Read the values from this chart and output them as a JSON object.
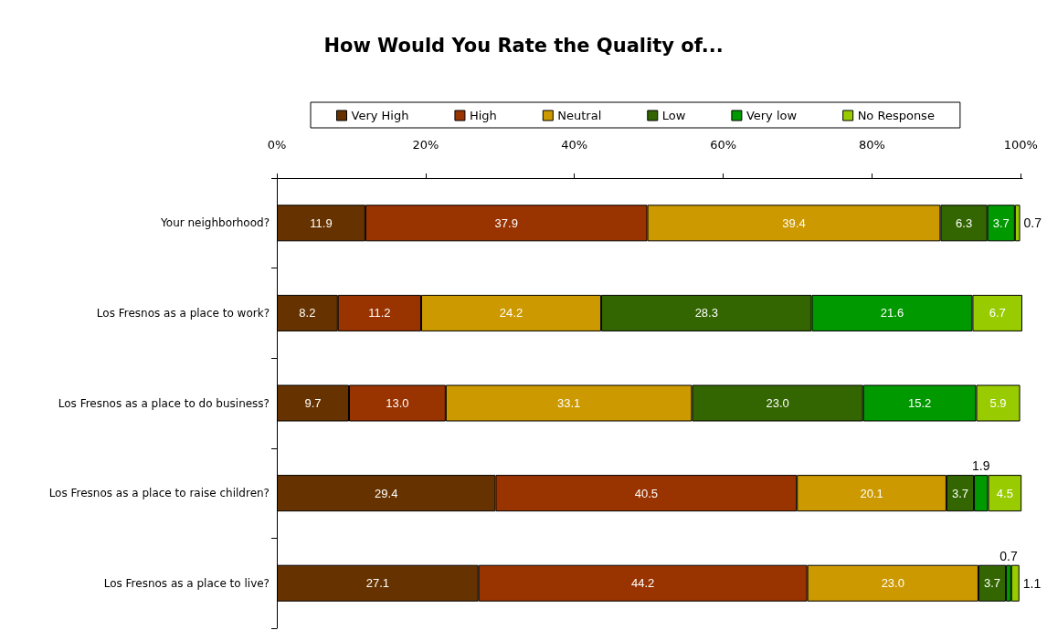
{
  "chart_data": {
    "type": "bar",
    "orientation": "horizontal",
    "stacked": true,
    "title": "How Would You Rate the Quality of...",
    "categories": [
      "Your neighborhood?",
      "Los Fresnos as a place to work?",
      "Los Fresnos as a place to do business?",
      "Los Fresnos as a place to raise children?",
      "Los Fresnos as a place to live?"
    ],
    "series": [
      {
        "name": "Very High",
        "color": "#663300",
        "values": [
          11.9,
          8.2,
          9.7,
          29.4,
          27.1
        ],
        "value_labels": [
          "11.9",
          "8.2",
          "9.7",
          "29.4",
          "27.1"
        ]
      },
      {
        "name": "High",
        "color": "#993300",
        "values": [
          37.9,
          11.2,
          13.0,
          40.5,
          44.2
        ],
        "value_labels": [
          "37.9",
          "11.2",
          "13.0",
          "40.5",
          "44.2"
        ]
      },
      {
        "name": "Neutral",
        "color": "#cc9900",
        "values": [
          39.4,
          24.2,
          33.1,
          20.1,
          23.0
        ],
        "value_labels": [
          "39.4",
          "24.2",
          "33.1",
          "20.1",
          "23.0"
        ]
      },
      {
        "name": "Low",
        "color": "#336600",
        "values": [
          6.3,
          28.3,
          23.0,
          3.7,
          3.7
        ],
        "value_labels": [
          "6.3",
          "28.3",
          "23.0",
          "3.7",
          "3.7"
        ]
      },
      {
        "name": "Very low",
        "color": "#009900",
        "values": [
          3.7,
          21.6,
          15.2,
          1.9,
          0.7
        ],
        "value_labels": [
          "3.7",
          "21.6",
          "15.2",
          "1.9",
          "0.7"
        ]
      },
      {
        "name": "No Response",
        "color": "#99cc00",
        "values": [
          0.7,
          6.7,
          5.9,
          4.5,
          1.1
        ],
        "value_labels": [
          "0.7",
          "6.7",
          "5.9",
          "4.5",
          "1.1"
        ]
      }
    ],
    "xlim": [
      0,
      100.2
    ],
    "xticks": [
      {
        "value": 0,
        "label": "0%"
      },
      {
        "value": 20,
        "label": "20%"
      },
      {
        "value": 40,
        "label": "40%"
      },
      {
        "value": 60,
        "label": "60%"
      },
      {
        "value": 80,
        "label": "80%"
      },
      {
        "value": 100,
        "label": "100%"
      }
    ],
    "legend": "top",
    "grid": false
  }
}
